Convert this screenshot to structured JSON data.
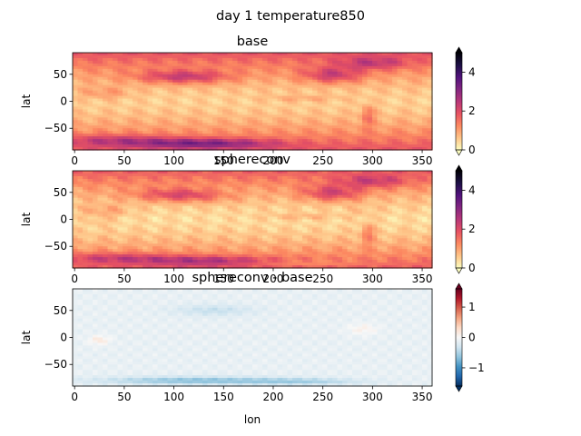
{
  "suptitle": "day 1 temperature850",
  "colors": {
    "magma_r": [
      "#fcfdbf",
      "#fec488",
      "#fc8961",
      "#e75263",
      "#b73779",
      "#822681",
      "#51127c",
      "#1c1044",
      "#000004"
    ],
    "rdbu_r": [
      "#053061",
      "#2166ac",
      "#4393c3",
      "#92c5de",
      "#d1e5f0",
      "#f7f7f7",
      "#fddbc7",
      "#f4a582",
      "#d6604d",
      "#b2182b",
      "#67001f"
    ],
    "axis": "#000000"
  },
  "chart_data": [
    {
      "type": "heatmap",
      "title": "base",
      "xlabel": "",
      "ylabel": "lat",
      "xlim": [
        -2,
        360
      ],
      "ylim": [
        -90,
        90
      ],
      "xticks": [
        "0",
        "50",
        "100",
        "150",
        "200",
        "250",
        "300",
        "350"
      ],
      "yticks": [
        "50",
        "0",
        "-50"
      ],
      "colormap": "magma_r",
      "clim": [
        0,
        5
      ],
      "colorbar_ticks": [
        "0",
        "2",
        "4"
      ],
      "colorbar_extend": "both"
    },
    {
      "type": "heatmap",
      "title": "sphereconv",
      "xlabel": "",
      "ylabel": "lat",
      "xlim": [
        -2,
        360
      ],
      "ylim": [
        -90,
        90
      ],
      "xticks": [
        "0",
        "50",
        "100",
        "150",
        "200",
        "250",
        "300",
        "350"
      ],
      "yticks": [
        "50",
        "0",
        "-50"
      ],
      "colormap": "magma_r",
      "clim": [
        0,
        5
      ],
      "colorbar_ticks": [
        "0",
        "2",
        "4"
      ],
      "colorbar_extend": "both"
    },
    {
      "type": "heatmap",
      "title": "sphereconv - base",
      "xlabel": "lon",
      "ylabel": "lat",
      "xlim": [
        -2,
        360
      ],
      "ylim": [
        -90,
        90
      ],
      "xticks": [
        "0",
        "50",
        "100",
        "150",
        "200",
        "250",
        "300",
        "350"
      ],
      "yticks": [
        "50",
        "0",
        "-50"
      ],
      "colormap": "rdbu_r",
      "clim": [
        -1.6,
        1.6
      ],
      "colorbar_ticks": [
        "1",
        "0",
        "−1"
      ],
      "colorbar_extend": "both"
    }
  ]
}
